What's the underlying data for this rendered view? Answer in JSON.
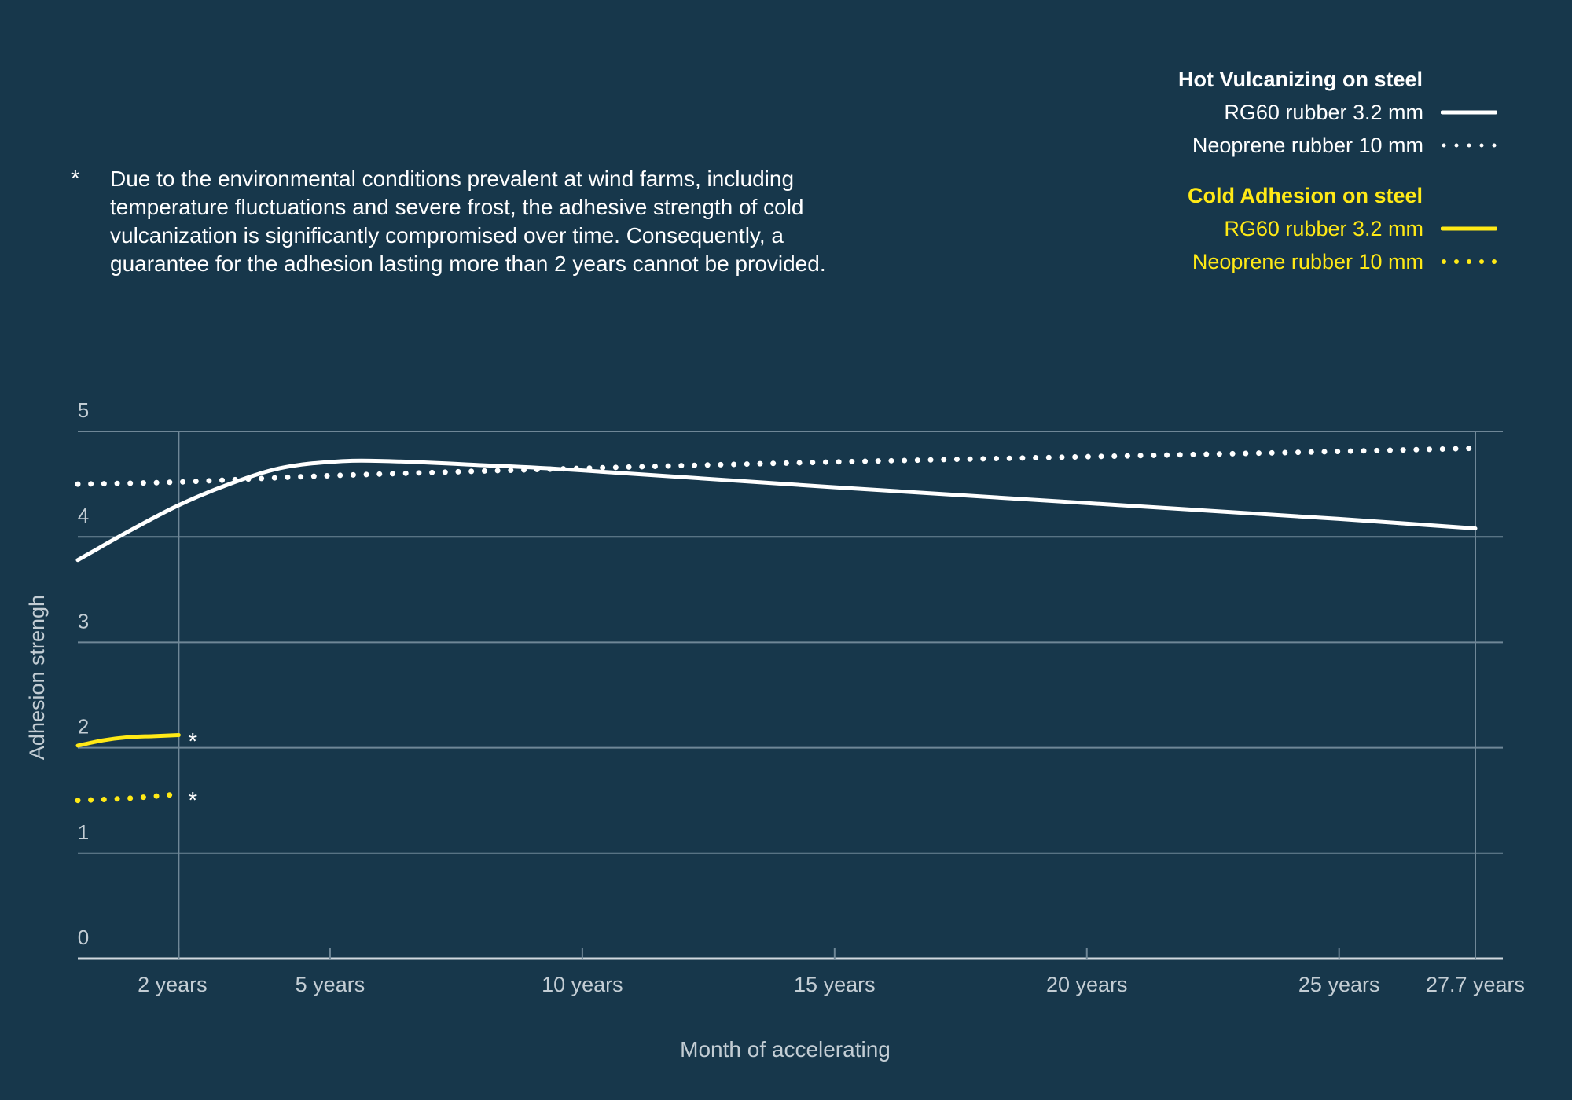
{
  "note": {
    "marker": "*",
    "text": "Due to the environmental conditions prevalent at wind farms, including temperature fluctuations and severe frost, the adhesive strength of cold vulcanization is significantly compromised over time. Consequently, a guarantee for the adhesion lasting more than 2 years cannot be provided."
  },
  "legend": {
    "groups": [
      {
        "title": "Hot Vulcanizing on steel",
        "color": "#ffffff",
        "items": [
          {
            "label": "RG60 rubber 3.2 mm",
            "style": "solid"
          },
          {
            "label": "Neoprene rubber 10 mm",
            "style": "dotted"
          }
        ]
      },
      {
        "title": "Cold Adhesion on steel",
        "color": "#ffe916",
        "items": [
          {
            "label": "RG60 rubber 3.2 mm",
            "style": "solid"
          },
          {
            "label": "Neoprene rubber 10 mm",
            "style": "dotted"
          }
        ]
      }
    ]
  },
  "chart_data": {
    "type": "line",
    "xlabel": "Month of accelerating",
    "ylabel": "Adhesion strengh",
    "ylim": [
      0,
      5
    ],
    "xlim": [
      0,
      27.7
    ],
    "yticks": [
      "0",
      "1",
      "2",
      "3",
      "4",
      "5"
    ],
    "xticks": [
      {
        "value": 2,
        "label": "2 years"
      },
      {
        "value": 5,
        "label": "5 years"
      },
      {
        "value": 10,
        "label": "10 years"
      },
      {
        "value": 15,
        "label": "15 years"
      },
      {
        "value": 20,
        "label": "20 years"
      },
      {
        "value": 25,
        "label": "25 years"
      },
      {
        "value": 27.7,
        "label": "27.7 years"
      }
    ],
    "grid": true,
    "vertical_markers": [
      2,
      27.7
    ],
    "legend_position": "top-right",
    "series": [
      {
        "name": "RG60 rubber 3.2 mm",
        "group": "Hot Vulcanizing on steel",
        "color": "#ffffff",
        "style": "solid",
        "x": [
          0,
          1,
          2,
          3,
          4,
          5,
          6,
          8,
          10,
          15,
          20,
          25,
          27.7
        ],
        "y": [
          3.78,
          4.05,
          4.3,
          4.5,
          4.65,
          4.71,
          4.72,
          4.68,
          4.63,
          4.47,
          4.32,
          4.17,
          4.08
        ]
      },
      {
        "name": "Neoprene rubber 10 mm",
        "group": "Hot Vulcanizing on steel",
        "color": "#ffffff",
        "style": "dotted",
        "x": [
          0,
          2,
          5,
          10,
          15,
          20,
          25,
          27.7
        ],
        "y": [
          4.5,
          4.52,
          4.58,
          4.65,
          4.71,
          4.76,
          4.81,
          4.84
        ]
      },
      {
        "name": "RG60 rubber 3.2 mm",
        "group": "Cold Adhesion on steel",
        "color": "#ffe916",
        "style": "solid",
        "x": [
          0,
          0.5,
          1,
          1.5,
          2
        ],
        "y": [
          2.02,
          2.07,
          2.1,
          2.11,
          2.12
        ],
        "end_marker": "*"
      },
      {
        "name": "Neoprene rubber 10 mm",
        "group": "Cold Adhesion on steel",
        "color": "#ffe916",
        "style": "dotted",
        "x": [
          0,
          1,
          2
        ],
        "y": [
          1.5,
          1.52,
          1.56
        ],
        "end_marker": "*"
      }
    ]
  }
}
